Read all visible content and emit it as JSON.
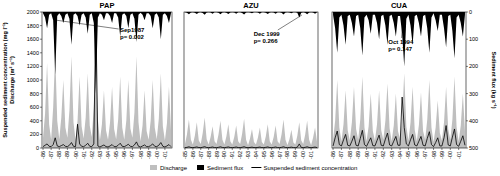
{
  "chart_data": [
    {
      "type": "area",
      "title": "PAP",
      "legend": "bottom",
      "y_label": [
        "Suspended sediment concentration (mg l⁻¹)",
        "Discharge (m³ s⁻¹)"
      ],
      "categories": [
        "-86",
        null,
        null,
        null,
        "-87",
        null,
        null,
        null,
        "-88",
        null,
        null,
        null,
        "-89",
        null,
        null,
        null,
        "-90",
        null,
        null,
        null,
        "-91",
        null,
        null,
        null,
        "-92",
        null,
        null,
        null,
        "-93",
        null,
        null,
        null,
        "-94",
        null,
        null,
        null,
        "-95",
        null,
        null,
        null,
        "-96",
        null,
        null,
        null,
        "-97",
        null,
        null,
        null,
        "-98",
        null,
        null,
        null,
        "-99",
        null,
        null,
        null,
        "-00",
        null,
        null,
        null,
        "-01",
        null,
        null,
        null
      ],
      "ylim": [
        0,
        2000
      ],
      "yticks": [
        0,
        200,
        400,
        600,
        800,
        1000,
        1200,
        1400,
        1600,
        1800,
        2000
      ],
      "y2lim": [
        500,
        0
      ],
      "annotations": [
        "Sep1987",
        "p= 0.002"
      ],
      "series": [
        {
          "name": "Discharge",
          "type": "area",
          "color": "#bfbfbf",
          "values": [
            150,
            500,
            1250,
            350,
            120,
            600,
            1400,
            400,
            130,
            450,
            1000,
            300,
            150,
            550,
            1350,
            380,
            120,
            400,
            1050,
            320,
            140,
            450,
            1100,
            330,
            160,
            600,
            1400,
            420,
            110,
            350,
            850,
            260,
            120,
            380,
            900,
            280,
            130,
            420,
            1050,
            300,
            120,
            400,
            1000,
            290,
            150,
            520,
            1350,
            380,
            100,
            330,
            850,
            250,
            120,
            400,
            1000,
            300,
            130,
            430,
            1100,
            320,
            110,
            360,
            900,
            260
          ]
        },
        {
          "name": "Sediment flux",
          "type": "area",
          "axis": "y2",
          "color": "#000000",
          "values": [
            5,
            20,
            60,
            10,
            5,
            30,
            230,
            15,
            5,
            15,
            40,
            10,
            5,
            25,
            120,
            10,
            5,
            15,
            50,
            10,
            5,
            20,
            80,
            10,
            5,
            40,
            300,
            20,
            5,
            10,
            30,
            5,
            5,
            15,
            40,
            5,
            5,
            20,
            90,
            10,
            5,
            15,
            60,
            10,
            5,
            25,
            110,
            10,
            3,
            10,
            30,
            5,
            5,
            15,
            60,
            10,
            5,
            20,
            100,
            10,
            5,
            15,
            40,
            5
          ]
        },
        {
          "name": "Suspended sediment concentration",
          "type": "line",
          "color": "#000000",
          "values": [
            20,
            40,
            60,
            25,
            20,
            50,
            150,
            30,
            20,
            35,
            50,
            25,
            20,
            40,
            80,
            25,
            20,
            350,
            60,
            25,
            20,
            40,
            70,
            25,
            20,
            60,
            1950,
            30,
            15,
            30,
            45,
            20,
            15,
            30,
            50,
            20,
            20,
            40,
            70,
            25,
            20,
            35,
            55,
            25,
            20,
            45,
            90,
            25,
            15,
            30,
            45,
            20,
            20,
            35,
            60,
            25,
            20,
            40,
            80,
            25,
            15,
            30,
            50,
            20
          ]
        }
      ]
    },
    {
      "type": "area",
      "title": "AZU",
      "categories": [
        "-85",
        null,
        null,
        null,
        "-86",
        null,
        null,
        null,
        "-87",
        null,
        null,
        null,
        "-88",
        null,
        null,
        null,
        "-89",
        null,
        null,
        null,
        "-90",
        null,
        null,
        null,
        "-91",
        null,
        null,
        null,
        "-92",
        null,
        null,
        null,
        "-93",
        null,
        null,
        null,
        "-94",
        null,
        null,
        null,
        "-95",
        null,
        null,
        null,
        "-96",
        null,
        null,
        null,
        "-97",
        null,
        null,
        null,
        "-98",
        null,
        null,
        null,
        "-99",
        null,
        null,
        null,
        "-00",
        null,
        null,
        null,
        "-01",
        null,
        null,
        null
      ],
      "ylim": [
        0,
        2000
      ],
      "y2lim": [
        500,
        0
      ],
      "annotations": [
        "Dec 1999",
        "p= 0.266"
      ],
      "series": [
        {
          "type": "area",
          "color": "#bfbfbf",
          "values": [
            60,
            200,
            420,
            120,
            50,
            180,
            380,
            110,
            60,
            220,
            450,
            130,
            50,
            160,
            320,
            100,
            60,
            200,
            400,
            120,
            50,
            170,
            350,
            100,
            50,
            160,
            330,
            100,
            60,
            210,
            430,
            120,
            40,
            140,
            280,
            90,
            50,
            150,
            300,
            90,
            50,
            170,
            350,
            100,
            50,
            160,
            330,
            100,
            60,
            200,
            420,
            120,
            40,
            130,
            270,
            80,
            50,
            180,
            380,
            110,
            60,
            200,
            400,
            120,
            40,
            150,
            300,
            90
          ]
        },
        {
          "type": "area",
          "axis": "y2",
          "color": "#000000",
          "values": [
            1,
            3,
            8,
            2,
            1,
            3,
            7,
            2,
            1,
            4,
            10,
            2,
            1,
            2,
            6,
            1,
            1,
            3,
            8,
            2,
            1,
            3,
            7,
            2,
            1,
            2,
            6,
            1,
            1,
            4,
            9,
            2,
            1,
            2,
            5,
            1,
            1,
            2,
            6,
            1,
            1,
            3,
            7,
            2,
            1,
            2,
            6,
            1,
            1,
            3,
            9,
            2,
            1,
            2,
            5,
            1,
            1,
            3,
            20,
            3,
            1,
            3,
            8,
            2,
            1,
            2,
            6,
            1
          ]
        },
        {
          "type": "line",
          "color": "#000000",
          "values": [
            5,
            10,
            18,
            8,
            5,
            10,
            16,
            7,
            5,
            12,
            20,
            8,
            5,
            9,
            15,
            6,
            5,
            10,
            18,
            8,
            5,
            10,
            16,
            7,
            5,
            9,
            15,
            6,
            5,
            11,
            19,
            8,
            4,
            8,
            13,
            6,
            5,
            9,
            14,
            6,
            5,
            10,
            16,
            7,
            5,
            9,
            15,
            6,
            5,
            10,
            18,
            8,
            4,
            8,
            13,
            6,
            5,
            12,
            60,
            9,
            5,
            10,
            18,
            8,
            4,
            9,
            14,
            6
          ]
        }
      ]
    },
    {
      "type": "area",
      "title": "CUA",
      "y2_label": "Sediment flux (kg s⁻¹)",
      "categories": [
        "-86",
        null,
        null,
        null,
        "-87",
        null,
        null,
        null,
        "-88",
        null,
        null,
        null,
        "-89",
        null,
        null,
        null,
        "-90",
        null,
        null,
        null,
        "-91",
        null,
        null,
        null,
        "-92",
        null,
        null,
        null,
        "-93",
        null,
        null,
        null,
        "-94",
        null,
        null,
        null,
        "-95",
        null,
        null,
        null,
        "-96",
        null,
        null,
        null,
        "-97",
        null,
        null,
        null,
        "-98",
        null,
        null,
        null,
        "-99",
        null,
        null,
        null,
        "-00",
        null,
        null,
        null,
        "-01",
        null,
        null,
        null
      ],
      "ylim": [
        0,
        2000
      ],
      "y2lim": [
        500,
        0
      ],
      "y2ticks": [
        0,
        100,
        200,
        300,
        400,
        500
      ],
      "annotations": [
        "Oct 1994",
        "p= 0.147"
      ],
      "series": [
        {
          "type": "area",
          "color": "#bfbfbf",
          "values": [
            120,
            400,
            1000,
            300,
            100,
            350,
            850,
            260,
            110,
            380,
            900,
            280,
            120,
            420,
            1050,
            300,
            100,
            320,
            800,
            250,
            110,
            350,
            850,
            260,
            120,
            400,
            950,
            290,
            100,
            330,
            800,
            250,
            130,
            450,
            1100,
            320,
            110,
            370,
            900,
            270,
            100,
            340,
            820,
            250,
            120,
            420,
            1000,
            300,
            90,
            300,
            700,
            220,
            110,
            380,
            900,
            280,
            120,
            420,
            1050,
            310,
            100,
            330,
            800,
            250
          ]
        },
        {
          "type": "area",
          "axis": "y2",
          "color": "#000000",
          "values": [
            10,
            60,
            150,
            20,
            10,
            50,
            120,
            15,
            10,
            40,
            90,
            15,
            10,
            60,
            160,
            20,
            10,
            30,
            80,
            10,
            10,
            40,
            100,
            15,
            10,
            50,
            120,
            15,
            10,
            40,
            90,
            15,
            15,
            80,
            200,
            25,
            10,
            50,
            120,
            15,
            10,
            40,
            90,
            15,
            10,
            60,
            150,
            20,
            5,
            30,
            70,
            10,
            10,
            60,
            130,
            15,
            10,
            70,
            170,
            20,
            10,
            40,
            90,
            10
          ]
        },
        {
          "type": "line",
          "color": "#000000",
          "values": [
            30,
            150,
            250,
            50,
            30,
            120,
            200,
            40,
            30,
            100,
            180,
            40,
            30,
            140,
            260,
            50,
            25,
            90,
            150,
            35,
            30,
            110,
            190,
            40,
            30,
            130,
            220,
            45,
            30,
            100,
            170,
            40,
            40,
            750,
            300,
            60,
            30,
            120,
            200,
            45,
            30,
            100,
            170,
            40,
            30,
            140,
            240,
            50,
            20,
            80,
            150,
            30,
            30,
            150,
            330,
            45,
            30,
            160,
            280,
            50,
            25,
            100,
            180,
            40
          ]
        }
      ]
    }
  ]
}
